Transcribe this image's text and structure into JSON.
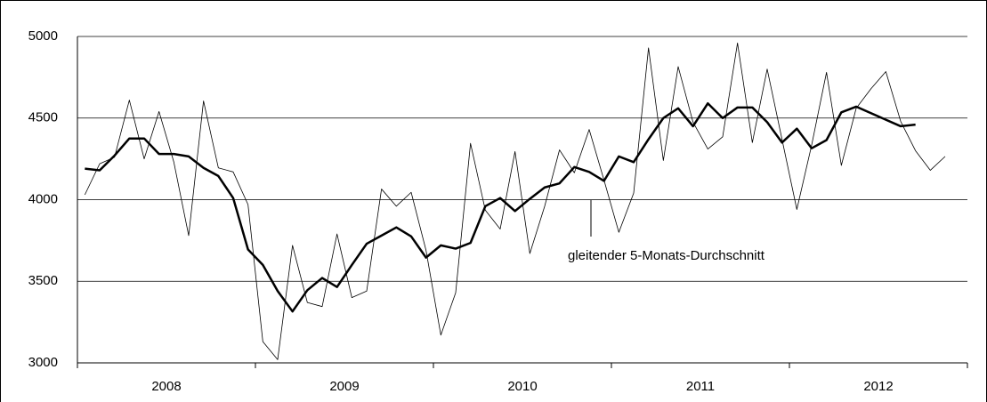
{
  "chart_data": {
    "type": "line",
    "categories": [
      null,
      null,
      null,
      null,
      null,
      null,
      null,
      null,
      null,
      null,
      null,
      null,
      null,
      null,
      null,
      null,
      null,
      null,
      null,
      null,
      null,
      null,
      null,
      null,
      null,
      null,
      null,
      null,
      null,
      null,
      null,
      null,
      null,
      null,
      null,
      null,
      null,
      null,
      null,
      null,
      null,
      null,
      null,
      null,
      null,
      null,
      null,
      null,
      null,
      null,
      null,
      null,
      null,
      null,
      null,
      null,
      null,
      null,
      null,
      null
    ],
    "xgroups": [
      "2008",
      "2009",
      "2010",
      "2011",
      "2012"
    ],
    "series": [
      {
        "color": "#000000",
        "width": 0.8,
        "values": [
          4030,
          4220,
          4260,
          4610,
          4250,
          4540,
          4230,
          3780,
          4605,
          4195,
          4170,
          3970,
          3130,
          3020,
          3720,
          3370,
          3345,
          3790,
          3400,
          3440,
          4065,
          3960,
          4045,
          3690,
          3170,
          3430,
          4345,
          3935,
          3820,
          4295,
          3670,
          3960,
          4305,
          4165,
          4430,
          4120,
          3800,
          4040,
          4930,
          4240,
          4815,
          4475,
          4310,
          4385,
          4960,
          4350,
          4800,
          4370,
          3940,
          4335,
          4780,
          4210,
          4560,
          4680,
          4785,
          4480,
          4300,
          4180,
          4265,
          null
        ]
      },
      {
        "color": "#000000",
        "width": 2.5,
        "values": [
          4190,
          4180,
          4270,
          4375,
          4375,
          4280,
          4280,
          4265,
          4195,
          4145,
          4010,
          3695,
          3600,
          3440,
          3315,
          3445,
          3520,
          3465,
          3600,
          3730,
          3780,
          3830,
          3775,
          3645,
          3720,
          3700,
          3735,
          3960,
          4010,
          3930,
          4005,
          4075,
          4100,
          4200,
          4170,
          4115,
          4265,
          4230,
          4370,
          4500,
          4560,
          4450,
          4590,
          4500,
          4565,
          4565,
          4475,
          4350,
          4435,
          4315,
          4365,
          4535,
          4570,
          4530,
          4490,
          4450,
          4460,
          null,
          null,
          null
        ]
      }
    ],
    "annotations": [
      "gleitender 5-Monats-Durchschnitt"
    ],
    "ylim": [
      3000,
      5000
    ],
    "yticks": [
      3000,
      3500,
      4000,
      4500,
      5000
    ],
    "grid": true
  }
}
